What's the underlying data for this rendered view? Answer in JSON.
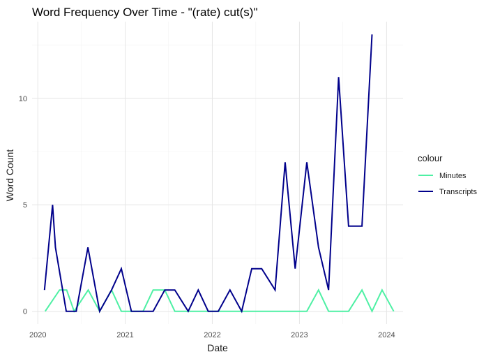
{
  "chart_data": {
    "type": "line",
    "title": "Word Frequency Over Time - \"(rate) cut(s)\"",
    "xlabel": "Date",
    "ylabel": "Word Count",
    "x_ticks": [
      "2020",
      "2021",
      "2022",
      "2023",
      "2024"
    ],
    "y_ticks": [
      "0",
      "5",
      "10"
    ],
    "xlim": [
      "2019-12-08",
      "2024-03-10"
    ],
    "ylim": [
      -0.6,
      13.6
    ],
    "grid": true,
    "legend_placement": "right",
    "legend_title": "colour",
    "series": [
      {
        "name": "Minutes",
        "color": "#4ef0a4",
        "points": [
          [
            "2020-02-01",
            0
          ],
          [
            "2020-04-01",
            1
          ],
          [
            "2020-05-01",
            1
          ],
          [
            "2020-06-01",
            0
          ],
          [
            "2020-07-30",
            1
          ],
          [
            "2020-09-16",
            0
          ],
          [
            "2020-11-05",
            1
          ],
          [
            "2020-12-16",
            0
          ],
          [
            "2021-01-27",
            0
          ],
          [
            "2021-03-17",
            0
          ],
          [
            "2021-04-28",
            1
          ],
          [
            "2021-06-16",
            1
          ],
          [
            "2021-07-28",
            0
          ],
          [
            "2021-09-22",
            0
          ],
          [
            "2021-11-03",
            0
          ],
          [
            "2021-12-15",
            0
          ],
          [
            "2022-01-26",
            0
          ],
          [
            "2022-03-16",
            0
          ],
          [
            "2022-05-04",
            0
          ],
          [
            "2022-06-15",
            0
          ],
          [
            "2022-07-27",
            0
          ],
          [
            "2022-09-21",
            0
          ],
          [
            "2022-11-02",
            0
          ],
          [
            "2022-12-14",
            0
          ],
          [
            "2023-02-01",
            0
          ],
          [
            "2023-03-22",
            1
          ],
          [
            "2023-05-03",
            0
          ],
          [
            "2023-06-14",
            0
          ],
          [
            "2023-07-26",
            0
          ],
          [
            "2023-09-20",
            1
          ],
          [
            "2023-11-01",
            0
          ],
          [
            "2023-12-13",
            1
          ],
          [
            "2024-01-31",
            0
          ]
        ]
      },
      {
        "name": "Transcripts",
        "color": "#00008b",
        "points": [
          [
            "2020-01-29",
            1
          ],
          [
            "2020-03-03",
            5
          ],
          [
            "2020-03-15",
            3
          ],
          [
            "2020-04-29",
            0
          ],
          [
            "2020-06-10",
            0
          ],
          [
            "2020-07-29",
            3
          ],
          [
            "2020-09-16",
            0
          ],
          [
            "2020-11-05",
            1
          ],
          [
            "2020-12-16",
            2
          ],
          [
            "2021-01-27",
            0
          ],
          [
            "2021-03-17",
            0
          ],
          [
            "2021-04-28",
            0
          ],
          [
            "2021-06-16",
            1
          ],
          [
            "2021-07-28",
            1
          ],
          [
            "2021-09-22",
            0
          ],
          [
            "2021-11-03",
            1
          ],
          [
            "2021-12-15",
            0
          ],
          [
            "2022-01-26",
            0
          ],
          [
            "2022-03-16",
            1
          ],
          [
            "2022-05-04",
            0
          ],
          [
            "2022-06-15",
            2
          ],
          [
            "2022-07-27",
            2
          ],
          [
            "2022-09-21",
            1
          ],
          [
            "2022-11-02",
            7
          ],
          [
            "2022-12-14",
            2
          ],
          [
            "2023-02-01",
            7
          ],
          [
            "2023-03-22",
            3
          ],
          [
            "2023-05-03",
            1
          ],
          [
            "2023-06-14",
            11
          ],
          [
            "2023-07-26",
            4
          ],
          [
            "2023-09-20",
            4
          ],
          [
            "2023-11-01",
            13
          ]
        ]
      }
    ]
  }
}
